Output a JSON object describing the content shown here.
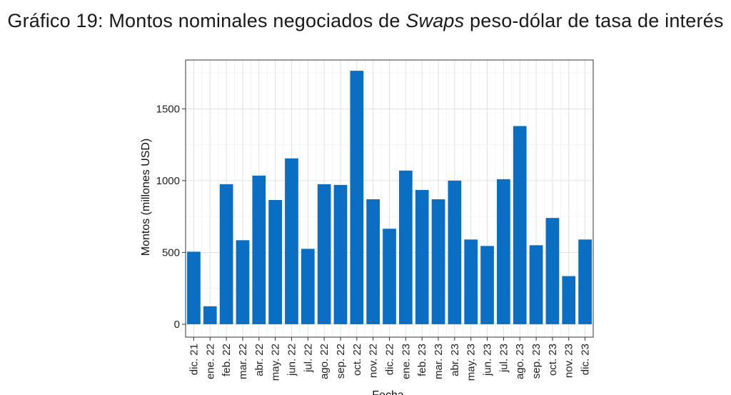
{
  "title": {
    "prefix": "Gráfico 19: Montos nominales negociados de ",
    "emphasis": "Swaps",
    "suffix": " peso-dólar de tasa de interés"
  },
  "chart_data": {
    "type": "bar",
    "categories": [
      "dic. 21",
      "ene. 22",
      "feb. 22",
      "mar. 22",
      "abr. 22",
      "may. 22",
      "jun. 22",
      "jul. 22",
      "ago. 22",
      "sep. 22",
      "oct. 22",
      "nov. 22",
      "dic. 22",
      "ene. 23",
      "feb. 23",
      "mar. 23",
      "abr. 23",
      "may. 23",
      "jun. 23",
      "jul. 23",
      "ago. 23",
      "sep. 23",
      "oct. 23",
      "nov. 23",
      "dic. 23"
    ],
    "values": [
      505,
      125,
      975,
      585,
      1035,
      865,
      1155,
      525,
      975,
      970,
      1765,
      870,
      665,
      1070,
      935,
      870,
      1000,
      590,
      545,
      1010,
      1380,
      550,
      740,
      335,
      590
    ],
    "xlabel": "Fecha",
    "ylabel": "Montos (millones USD)",
    "ylim": [
      -90,
      1840
    ],
    "yticks": [
      0,
      500,
      1000,
      1500
    ],
    "bar_color": "#0a6fc2",
    "grid": true
  }
}
